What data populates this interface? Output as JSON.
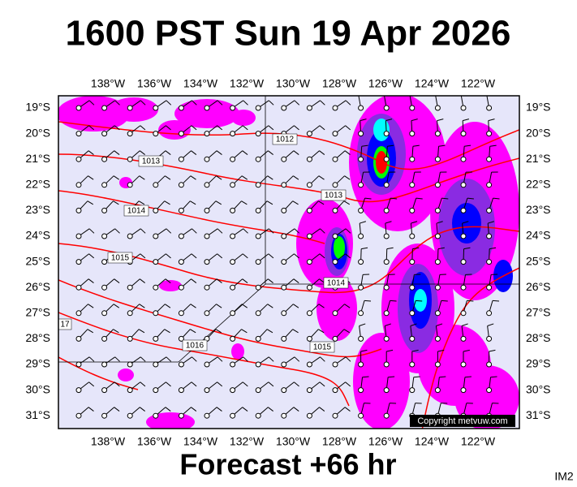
{
  "header": {
    "title": "1600 PST Sun 19 Apr 2026"
  },
  "map": {
    "longitudes": [
      "138°W",
      "136°W",
      "134°W",
      "132°W",
      "130°W",
      "128°W",
      "126°W",
      "124°W",
      "122°W"
    ],
    "latitudes": [
      "19°S",
      "20°S",
      "21°S",
      "22°S",
      "23°S",
      "24°S",
      "25°S",
      "26°S",
      "27°S",
      "28°S",
      "29°S",
      "30°S",
      "31°S"
    ],
    "isobar_labels": [
      "1012",
      "1013",
      "1013",
      "1014",
      "1015",
      "1014",
      "1016",
      "1015",
      "17"
    ],
    "copyright": "Copyright metvuw.com"
  },
  "footer": {
    "forecast": "Forecast +66 hr",
    "image_id": "IM2"
  }
}
